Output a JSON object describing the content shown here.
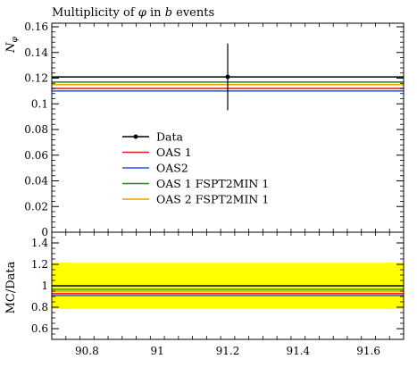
{
  "chart_data": [
    {
      "type": "line",
      "title_main": "Multiplicity of ",
      "title_sym1": "φ",
      "title_mid": " in ",
      "title_sym2": "b",
      "title_end": " events",
      "ylabel_main": "N",
      "ylabel_sub": "φ",
      "xlim": [
        90.7,
        91.7
      ],
      "ylim": [
        0,
        0.16
      ],
      "y_ticks": [
        0,
        0.02,
        0.04,
        0.06,
        0.08,
        0.1,
        0.12,
        0.14,
        0.16
      ],
      "y_tick_labels": [
        "0",
        "0.02",
        "0.04",
        "0.06",
        "0.08",
        "0.1",
        "0.12",
        "0.14",
        "0.16"
      ],
      "data_point": {
        "x": 91.2,
        "y": 0.121,
        "yerr_low": 0.095,
        "yerr_high": 0.147
      },
      "series": [
        {
          "name": "Data",
          "y": 0.121,
          "color": "#000000",
          "marker": "dot"
        },
        {
          "name": "OAS 1",
          "y": 0.112,
          "color": "#e41a1c"
        },
        {
          "name": "OAS2",
          "y": 0.11,
          "color": "#2a52e8"
        },
        {
          "name": "OAS 1 FSPT2MIN 1",
          "y": 0.117,
          "color": "#1a8a1a"
        },
        {
          "name": "OAS 2 FSPT2MIN 1",
          "y": 0.115,
          "color": "#f5a000"
        }
      ]
    },
    {
      "type": "line",
      "ylabel": "MC/Data",
      "xlim": [
        90.7,
        91.7
      ],
      "ylim": [
        0.5,
        1.5
      ],
      "y_ticks": [
        0.6,
        0.8,
        1.0,
        1.2,
        1.4
      ],
      "y_tick_labels": [
        "0.6",
        "0.8",
        "1",
        "1.2",
        "1.4"
      ],
      "x_ticks": [
        90.8,
        91.0,
        91.2,
        91.4,
        91.6
      ],
      "x_tick_labels": [
        "90.8",
        "91",
        "91.2",
        "91.4",
        "91.6"
      ],
      "uncertainty_band": {
        "low": 0.785,
        "high": 1.215,
        "color": "#ffff00"
      },
      "series": [
        {
          "name": "Data",
          "y": 1.0,
          "color": "#000000"
        },
        {
          "name": "OAS 1",
          "y": 0.926,
          "color": "#e41a1c"
        },
        {
          "name": "OAS2",
          "y": 0.909,
          "color": "#2a52e8"
        },
        {
          "name": "OAS 1 FSPT2MIN 1",
          "y": 0.967,
          "color": "#1a8a1a"
        },
        {
          "name": "OAS 2 FSPT2MIN 1",
          "y": 0.95,
          "color": "#f5a000"
        }
      ]
    }
  ]
}
